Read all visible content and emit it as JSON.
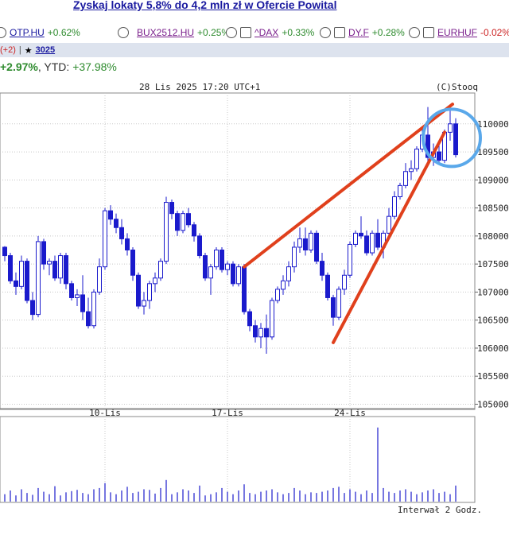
{
  "promo": {
    "text": "Zyskaj lokaty 5,8% do 4,2 mln zł w Ofercie Powital"
  },
  "tickers": [
    {
      "symbol": "OTP.HU",
      "change": "+0.62%",
      "style": "blue"
    },
    {
      "symbol": "BUX2512.HU",
      "change": "+0.25%",
      "style": "purple"
    },
    {
      "symbol": "^DAX",
      "change": "+0.33%",
      "style": "purple"
    },
    {
      "symbol": "DY.F",
      "change": "+0.28%",
      "style": "purple"
    },
    {
      "symbol": "EURHUF",
      "change": "-0.02%",
      "style": "purple"
    }
  ],
  "subbar": {
    "count": "(+2)",
    "separator": "|",
    "star": "★",
    "id": "3025"
  },
  "perf": {
    "day": "+2.97%",
    "sep": ", YTD: ",
    "ytd": "+37.98%"
  },
  "chart": {
    "timestamp": "28 Lis 2025 17:20 UTC+1",
    "credit": "(C)Stooq",
    "interval": "Interwał 2 Godz.",
    "colors": {
      "candle": "#1a1acc",
      "trend": "#e0401c",
      "circle": "#5aa8ea",
      "grid": "#c8c8c8"
    }
  },
  "chart_data": {
    "type": "candlestick",
    "y_ticks": [
      "110000",
      "109500",
      "109000",
      "108500",
      "108000",
      "107500",
      "107000",
      "106500",
      "106000",
      "105500",
      "105000"
    ],
    "ylim": [
      104950,
      110550
    ],
    "x_ticks": [
      {
        "label": "10-Lis",
        "index": 18
      },
      {
        "label": "17-Lis",
        "index": 40
      },
      {
        "label": "24-Lis",
        "index": 62
      }
    ],
    "candles": [
      [
        107800,
        107820,
        107550,
        107650
      ],
      [
        107650,
        107700,
        107150,
        107200
      ],
      [
        107200,
        107350,
        106950,
        107100
      ],
      [
        107100,
        107650,
        107050,
        107550
      ],
      [
        107550,
        107600,
        106800,
        106850
      ],
      [
        106850,
        107000,
        106500,
        106600
      ],
      [
        106600,
        108000,
        106550,
        107900
      ],
      [
        107900,
        107950,
        107400,
        107500
      ],
      [
        107500,
        107600,
        107300,
        107550
      ],
      [
        107550,
        107650,
        107200,
        107250
      ],
      [
        107250,
        107700,
        107150,
        107650
      ],
      [
        107650,
        107700,
        107050,
        107150
      ],
      [
        107150,
        107200,
        106850,
        106900
      ],
      [
        106900,
        107050,
        106750,
        106950
      ],
      [
        106950,
        107300,
        106500,
        106650
      ],
      [
        106650,
        106900,
        106350,
        106400
      ],
      [
        106400,
        107050,
        106350,
        107000
      ],
      [
        107000,
        107600,
        106950,
        107450
      ],
      [
        107450,
        108500,
        107400,
        108450
      ],
      [
        108450,
        108550,
        108200,
        108300
      ],
      [
        108300,
        108400,
        108050,
        108150
      ],
      [
        108150,
        108300,
        107850,
        107950
      ],
      [
        107950,
        108050,
        107650,
        107750
      ],
      [
        107750,
        107800,
        107200,
        107300
      ],
      [
        107300,
        107350,
        106700,
        106750
      ],
      [
        106750,
        107000,
        106600,
        106850
      ],
      [
        106850,
        107200,
        106700,
        107150
      ],
      [
        107150,
        107350,
        107000,
        107250
      ],
      [
        107250,
        107600,
        107200,
        107550
      ],
      [
        107550,
        108700,
        107500,
        108600
      ],
      [
        108600,
        108650,
        108300,
        108400
      ],
      [
        108400,
        108450,
        108000,
        108100
      ],
      [
        108100,
        108450,
        108050,
        108400
      ],
      [
        108400,
        108500,
        108150,
        108200
      ],
      [
        108200,
        108250,
        107900,
        108000
      ],
      [
        108000,
        108050,
        107600,
        107650
      ],
      [
        107650,
        107700,
        107200,
        107250
      ],
      [
        107250,
        107500,
        106950,
        107450
      ],
      [
        107450,
        107800,
        107400,
        107750
      ],
      [
        107750,
        107800,
        107350,
        107400
      ],
      [
        107400,
        107550,
        107300,
        107500
      ],
      [
        107500,
        107550,
        107100,
        107150
      ],
      [
        107150,
        107500,
        107100,
        107450
      ],
      [
        107450,
        107500,
        106600,
        106650
      ],
      [
        106650,
        106700,
        106300,
        106400
      ],
      [
        106400,
        106500,
        106100,
        106200
      ],
      [
        106200,
        106450,
        106000,
        106350
      ],
      [
        106350,
        106600,
        105900,
        106200
      ],
      [
        106200,
        106900,
        106150,
        106850
      ],
      [
        106850,
        107100,
        106800,
        107050
      ],
      [
        107050,
        107300,
        106950,
        107200
      ],
      [
        107200,
        107550,
        107100,
        107450
      ],
      [
        107450,
        107900,
        107350,
        107800
      ],
      [
        107800,
        108150,
        107700,
        107950
      ],
      [
        107950,
        108150,
        107650,
        107750
      ],
      [
        107750,
        108100,
        107700,
        108050
      ],
      [
        108050,
        108100,
        107500,
        107550
      ],
      [
        107550,
        107700,
        107200,
        107300
      ],
      [
        107300,
        107350,
        106850,
        106900
      ],
      [
        106900,
        106950,
        106400,
        106550
      ],
      [
        106550,
        107100,
        106500,
        107050
      ],
      [
        107050,
        107400,
        106950,
        107300
      ],
      [
        107300,
        107900,
        107250,
        107850
      ],
      [
        107850,
        108100,
        107800,
        108050
      ],
      [
        108050,
        108350,
        107950,
        108000
      ],
      [
        108000,
        108100,
        107650,
        107700
      ],
      [
        107700,
        108100,
        107650,
        108050
      ],
      [
        108050,
        108300,
        107750,
        107800
      ],
      [
        107800,
        108100,
        107600,
        108050
      ],
      [
        108050,
        108500,
        108000,
        108350
      ],
      [
        108350,
        108800,
        108300,
        108700
      ],
      [
        108700,
        108950,
        108650,
        108900
      ],
      [
        108900,
        109300,
        108850,
        109150
      ],
      [
        109150,
        109350,
        109000,
        109200
      ],
      [
        109200,
        109600,
        109150,
        109550
      ],
      [
        109550,
        109950,
        109500,
        109800
      ],
      [
        109800,
        110300,
        109300,
        109400
      ],
      [
        109400,
        109650,
        109250,
        109500
      ],
      [
        109500,
        109650,
        109300,
        109350
      ],
      [
        109350,
        109900,
        109300,
        109850
      ],
      [
        109850,
        110300,
        109700,
        110000
      ],
      [
        110000,
        110100,
        109400,
        109450
      ]
    ],
    "volume": [
      12,
      18,
      10,
      20,
      14,
      11,
      22,
      16,
      12,
      25,
      10,
      15,
      17,
      19,
      14,
      12,
      20,
      22,
      30,
      15,
      12,
      18,
      24,
      14,
      16,
      20,
      19,
      13,
      22,
      35,
      12,
      15,
      20,
      18,
      14,
      26,
      10,
      12,
      15,
      22,
      16,
      12,
      18,
      28,
      14,
      12,
      16,
      18,
      20,
      15,
      12,
      14,
      22,
      18,
      12,
      15,
      14,
      16,
      18,
      22,
      24,
      14,
      20,
      16,
      12,
      18,
      14,
      120,
      22,
      16,
      14,
      18,
      20,
      16,
      12,
      15,
      18,
      20,
      14,
      16,
      12,
      26
    ],
    "volume_ylim": [
      0,
      130
    ]
  }
}
